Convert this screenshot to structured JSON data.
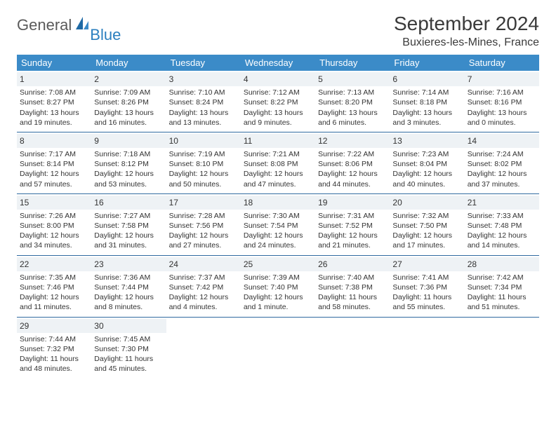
{
  "brand": {
    "general": "General",
    "blue": "Blue"
  },
  "title": "September 2024",
  "location": "Buxieres-les-Mines, France",
  "colors": {
    "header_bg": "#3b8bc8",
    "header_fg": "#ffffff",
    "daynum_bg": "#eef2f5",
    "row_border": "#2f6aa0",
    "text": "#333333",
    "logo_gray": "#5a5a5a",
    "logo_blue": "#2b7fbf"
  },
  "weekdays": [
    "Sunday",
    "Monday",
    "Tuesday",
    "Wednesday",
    "Thursday",
    "Friday",
    "Saturday"
  ],
  "weeks": [
    [
      {
        "n": "1",
        "sr": "7:08 AM",
        "ss": "8:27 PM",
        "d1": "Daylight: 13 hours",
        "d2": "and 19 minutes."
      },
      {
        "n": "2",
        "sr": "7:09 AM",
        "ss": "8:26 PM",
        "d1": "Daylight: 13 hours",
        "d2": "and 16 minutes."
      },
      {
        "n": "3",
        "sr": "7:10 AM",
        "ss": "8:24 PM",
        "d1": "Daylight: 13 hours",
        "d2": "and 13 minutes."
      },
      {
        "n": "4",
        "sr": "7:12 AM",
        "ss": "8:22 PM",
        "d1": "Daylight: 13 hours",
        "d2": "and 9 minutes."
      },
      {
        "n": "5",
        "sr": "7:13 AM",
        "ss": "8:20 PM",
        "d1": "Daylight: 13 hours",
        "d2": "and 6 minutes."
      },
      {
        "n": "6",
        "sr": "7:14 AM",
        "ss": "8:18 PM",
        "d1": "Daylight: 13 hours",
        "d2": "and 3 minutes."
      },
      {
        "n": "7",
        "sr": "7:16 AM",
        "ss": "8:16 PM",
        "d1": "Daylight: 13 hours",
        "d2": "and 0 minutes."
      }
    ],
    [
      {
        "n": "8",
        "sr": "7:17 AM",
        "ss": "8:14 PM",
        "d1": "Daylight: 12 hours",
        "d2": "and 57 minutes."
      },
      {
        "n": "9",
        "sr": "7:18 AM",
        "ss": "8:12 PM",
        "d1": "Daylight: 12 hours",
        "d2": "and 53 minutes."
      },
      {
        "n": "10",
        "sr": "7:19 AM",
        "ss": "8:10 PM",
        "d1": "Daylight: 12 hours",
        "d2": "and 50 minutes."
      },
      {
        "n": "11",
        "sr": "7:21 AM",
        "ss": "8:08 PM",
        "d1": "Daylight: 12 hours",
        "d2": "and 47 minutes."
      },
      {
        "n": "12",
        "sr": "7:22 AM",
        "ss": "8:06 PM",
        "d1": "Daylight: 12 hours",
        "d2": "and 44 minutes."
      },
      {
        "n": "13",
        "sr": "7:23 AM",
        "ss": "8:04 PM",
        "d1": "Daylight: 12 hours",
        "d2": "and 40 minutes."
      },
      {
        "n": "14",
        "sr": "7:24 AM",
        "ss": "8:02 PM",
        "d1": "Daylight: 12 hours",
        "d2": "and 37 minutes."
      }
    ],
    [
      {
        "n": "15",
        "sr": "7:26 AM",
        "ss": "8:00 PM",
        "d1": "Daylight: 12 hours",
        "d2": "and 34 minutes."
      },
      {
        "n": "16",
        "sr": "7:27 AM",
        "ss": "7:58 PM",
        "d1": "Daylight: 12 hours",
        "d2": "and 31 minutes."
      },
      {
        "n": "17",
        "sr": "7:28 AM",
        "ss": "7:56 PM",
        "d1": "Daylight: 12 hours",
        "d2": "and 27 minutes."
      },
      {
        "n": "18",
        "sr": "7:30 AM",
        "ss": "7:54 PM",
        "d1": "Daylight: 12 hours",
        "d2": "and 24 minutes."
      },
      {
        "n": "19",
        "sr": "7:31 AM",
        "ss": "7:52 PM",
        "d1": "Daylight: 12 hours",
        "d2": "and 21 minutes."
      },
      {
        "n": "20",
        "sr": "7:32 AM",
        "ss": "7:50 PM",
        "d1": "Daylight: 12 hours",
        "d2": "and 17 minutes."
      },
      {
        "n": "21",
        "sr": "7:33 AM",
        "ss": "7:48 PM",
        "d1": "Daylight: 12 hours",
        "d2": "and 14 minutes."
      }
    ],
    [
      {
        "n": "22",
        "sr": "7:35 AM",
        "ss": "7:46 PM",
        "d1": "Daylight: 12 hours",
        "d2": "and 11 minutes."
      },
      {
        "n": "23",
        "sr": "7:36 AM",
        "ss": "7:44 PM",
        "d1": "Daylight: 12 hours",
        "d2": "and 8 minutes."
      },
      {
        "n": "24",
        "sr": "7:37 AM",
        "ss": "7:42 PM",
        "d1": "Daylight: 12 hours",
        "d2": "and 4 minutes."
      },
      {
        "n": "25",
        "sr": "7:39 AM",
        "ss": "7:40 PM",
        "d1": "Daylight: 12 hours",
        "d2": "and 1 minute."
      },
      {
        "n": "26",
        "sr": "7:40 AM",
        "ss": "7:38 PM",
        "d1": "Daylight: 11 hours",
        "d2": "and 58 minutes."
      },
      {
        "n": "27",
        "sr": "7:41 AM",
        "ss": "7:36 PM",
        "d1": "Daylight: 11 hours",
        "d2": "and 55 minutes."
      },
      {
        "n": "28",
        "sr": "7:42 AM",
        "ss": "7:34 PM",
        "d1": "Daylight: 11 hours",
        "d2": "and 51 minutes."
      }
    ],
    [
      {
        "n": "29",
        "sr": "7:44 AM",
        "ss": "7:32 PM",
        "d1": "Daylight: 11 hours",
        "d2": "and 48 minutes."
      },
      {
        "n": "30",
        "sr": "7:45 AM",
        "ss": "7:30 PM",
        "d1": "Daylight: 11 hours",
        "d2": "and 45 minutes."
      },
      null,
      null,
      null,
      null,
      null
    ]
  ]
}
